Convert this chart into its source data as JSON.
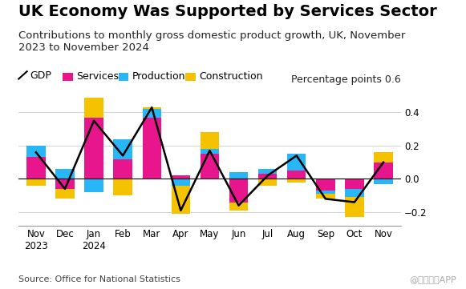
{
  "title": "UK Economy Was Supported by Services Sector",
  "subtitle": "Contributions to monthly gross domestic product growth, UK, November\n2023 to November 2024",
  "ylabel_right": "Percentage points 0.6",
  "source": "Source: Office for National Statistics",
  "watermark": "@智通财经APP",
  "months": [
    "Nov\n2023",
    "Dec",
    "Jan\n2024",
    "Feb",
    "Mar",
    "Apr",
    "May",
    "Jun",
    "Jul",
    "Aug",
    "Sep",
    "Oct",
    "Nov"
  ],
  "services": [
    0.13,
    -0.06,
    0.37,
    0.12,
    0.37,
    0.02,
    0.15,
    -0.14,
    0.03,
    0.05,
    -0.07,
    -0.06,
    0.1
  ],
  "production": [
    0.07,
    0.06,
    -0.08,
    0.12,
    0.05,
    -0.04,
    0.03,
    0.04,
    0.03,
    0.1,
    -0.02,
    -0.05,
    -0.03
  ],
  "construction": [
    -0.04,
    -0.06,
    0.12,
    -0.1,
    0.01,
    -0.17,
    0.1,
    -0.05,
    -0.04,
    -0.02,
    -0.03,
    -0.12,
    0.06
  ],
  "gdp": [
    0.16,
    -0.06,
    0.35,
    0.14,
    0.43,
    -0.19,
    0.17,
    -0.16,
    0.02,
    0.14,
    -0.12,
    -0.14,
    0.1
  ],
  "services_color": "#e8168c",
  "production_color": "#29b6f6",
  "construction_color": "#f5c200",
  "gdp_color": "#000000",
  "background_color": "#ffffff",
  "ylim": [
    -0.28,
    0.52
  ],
  "yticks": [
    -0.2,
    0.0,
    0.2,
    0.4
  ],
  "title_fontsize": 14,
  "subtitle_fontsize": 9.5,
  "legend_fontsize": 9,
  "axis_fontsize": 8.5,
  "source_fontsize": 8
}
